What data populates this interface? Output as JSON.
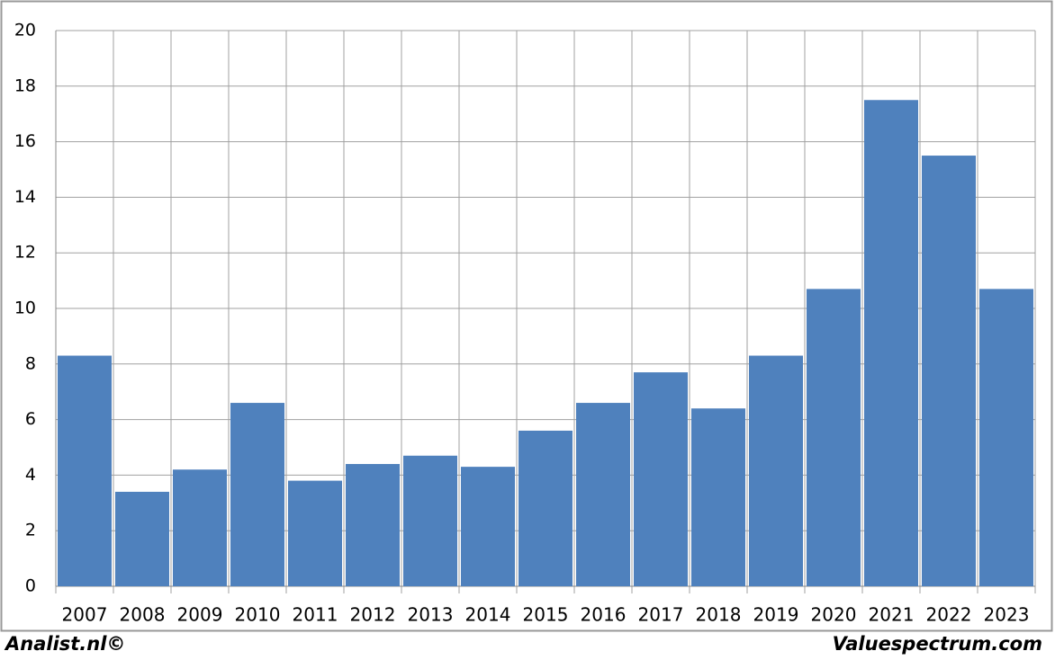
{
  "chart_data": {
    "type": "bar",
    "categories": [
      "2007",
      "2008",
      "2009",
      "2010",
      "2011",
      "2012",
      "2013",
      "2014",
      "2015",
      "2016",
      "2017",
      "2018",
      "2019",
      "2020",
      "2021",
      "2022",
      "2023"
    ],
    "values": [
      8.3,
      3.4,
      4.2,
      6.6,
      3.8,
      4.4,
      4.7,
      4.3,
      5.6,
      6.6,
      7.7,
      6.4,
      8.3,
      10.7,
      17.5,
      15.5,
      10.7
    ],
    "color": "#4f81bd",
    "ylim": [
      0,
      20
    ],
    "yticks": [
      0,
      2,
      4,
      6,
      8,
      10,
      12,
      14,
      16,
      18,
      20
    ],
    "grid": true
  },
  "footer": {
    "left": "Analist.nl©",
    "right": "Valuespectrum.com"
  }
}
